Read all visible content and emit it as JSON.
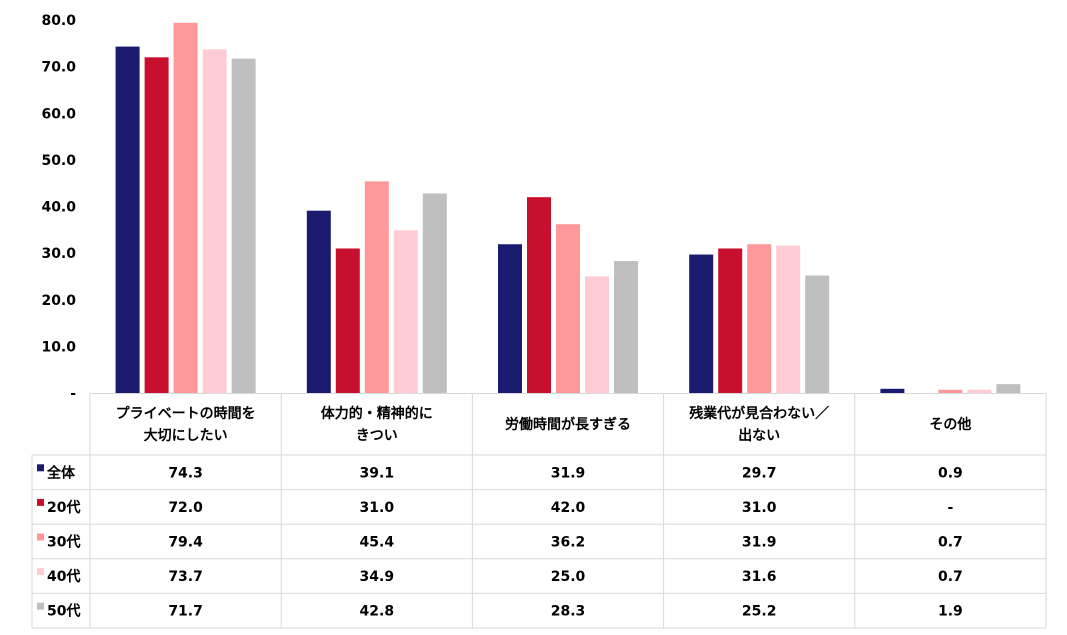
{
  "chart_data": {
    "type": "bar",
    "categories": [
      [
        "プライベートの時間を",
        "大切にしたい"
      ],
      [
        "体力的・精神的に",
        "きつい"
      ],
      [
        "労働時間が長すぎる"
      ],
      [
        "残業代が見合わない／",
        "出ない"
      ],
      [
        "その他"
      ]
    ],
    "series": [
      {
        "name": "全体",
        "color": "#1a1a6e",
        "values": [
          74.3,
          39.1,
          31.9,
          29.7,
          0.9
        ],
        "labels": [
          "74.3",
          "39.1",
          "31.9",
          "29.7",
          "0.9"
        ]
      },
      {
        "name": "20代",
        "color": "#c8102e",
        "values": [
          72.0,
          31.0,
          42.0,
          31.0,
          0
        ],
        "labels": [
          "72.0",
          "31.0",
          "42.0",
          "31.0",
          "-"
        ]
      },
      {
        "name": "30代",
        "color": "#ff9999",
        "values": [
          79.4,
          45.4,
          36.2,
          31.9,
          0.7
        ],
        "labels": [
          "79.4",
          "45.4",
          "36.2",
          "31.9",
          "0.7"
        ]
      },
      {
        "name": "40代",
        "color": "#ffccd5",
        "values": [
          73.7,
          34.9,
          25.0,
          31.6,
          0.7
        ],
        "labels": [
          "73.7",
          "34.9",
          "25.0",
          "31.6",
          "0.7"
        ]
      },
      {
        "name": "50代",
        "color": "#bfbfbf",
        "values": [
          71.7,
          42.8,
          28.3,
          25.2,
          1.9
        ],
        "labels": [
          "71.7",
          "42.8",
          "28.3",
          "25.2",
          "1.9"
        ]
      }
    ],
    "ylim": [
      0,
      80
    ],
    "yticks": [
      "-",
      "10.0",
      "20.0",
      "30.0",
      "40.0",
      "50.0",
      "60.0",
      "70.0",
      "80.0"
    ],
    "legend": "data-table-below",
    "grid": false
  }
}
